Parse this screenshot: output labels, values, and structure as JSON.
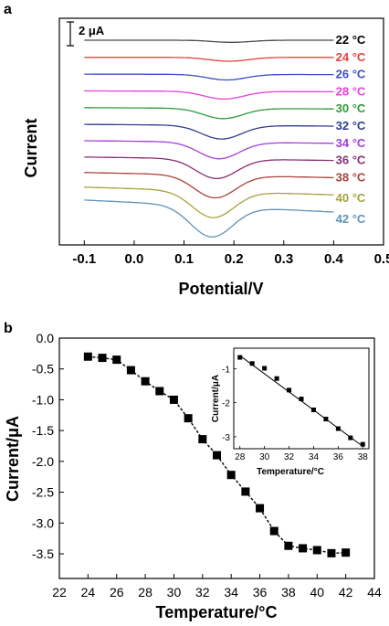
{
  "chart_data": [
    {
      "panel_label": "a",
      "type": "line",
      "xlabel": "Potential/V",
      "ylabel": "Current",
      "xlim": [
        -0.15,
        0.5
      ],
      "xticks": [
        -0.1,
        0.0,
        0.1,
        0.2,
        0.3,
        0.4,
        0.5
      ],
      "xtick_labels": [
        "-0.1",
        "0.0",
        "0.1",
        "0.2",
        "0.3",
        "0.4",
        "0.5"
      ],
      "scale_bar_label": "2 μA",
      "scale_bar_ua": 2,
      "x_range": [
        -0.1,
        0.4
      ],
      "series": [
        {
          "name": "22 °C",
          "color": "#4a4a4a",
          "peak_x": 0.195,
          "depth_ua": 0.25,
          "tilt_ua": 0.0
        },
        {
          "name": "24 °C",
          "color": "#e8403a",
          "peak_x": 0.19,
          "depth_ua": 0.45,
          "tilt_ua": 0.0
        },
        {
          "name": "26 °C",
          "color": "#3a4ec2",
          "peak_x": 0.185,
          "depth_ua": 0.65,
          "tilt_ua": 0.05
        },
        {
          "name": "28 °C",
          "color": "#e63fe0",
          "peak_x": 0.18,
          "depth_ua": 0.9,
          "tilt_ua": 0.1
        },
        {
          "name": "30 °C",
          "color": "#2f9a3c",
          "peak_x": 0.178,
          "depth_ua": 1.2,
          "tilt_ua": 0.15
        },
        {
          "name": "32 °C",
          "color": "#2e3e8c",
          "peak_x": 0.175,
          "depth_ua": 1.6,
          "tilt_ua": 0.2
        },
        {
          "name": "34 °C",
          "color": "#a43ed6",
          "peak_x": 0.17,
          "depth_ua": 1.95,
          "tilt_ua": 0.3
        },
        {
          "name": "36 °C",
          "color": "#8a2f72",
          "peak_x": 0.165,
          "depth_ua": 2.3,
          "tilt_ua": 0.4
        },
        {
          "name": "38 °C",
          "color": "#a8443e",
          "peak_x": 0.162,
          "depth_ua": 2.65,
          "tilt_ua": 0.6
        },
        {
          "name": "40 °C",
          "color": "#a6a23a",
          "peak_x": 0.158,
          "depth_ua": 3.1,
          "tilt_ua": 0.9
        },
        {
          "name": "42 °C",
          "color": "#5f93b8",
          "peak_x": 0.155,
          "depth_ua": 3.6,
          "tilt_ua": 1.4
        }
      ]
    },
    {
      "panel_label": "b",
      "type": "line",
      "xlabel": "Temperature/°C",
      "ylabel": "Current/μA",
      "xlim": [
        22,
        44
      ],
      "ylim": [
        -3.9,
        0.0
      ],
      "xticks": [
        22,
        24,
        26,
        28,
        30,
        32,
        34,
        36,
        38,
        40,
        42,
        44
      ],
      "yticks": [
        0.0,
        -0.5,
        -1.0,
        -1.5,
        -2.0,
        -2.5,
        -3.0,
        -3.5
      ],
      "ytick_labels": [
        "0.0",
        "-0.5",
        "-1.0",
        "-1.5",
        "-2.0",
        "-2.5",
        "-3.0",
        "-3.5"
      ],
      "x": [
        24,
        25,
        26,
        27,
        28,
        29,
        30,
        31,
        32,
        33,
        34,
        35,
        36,
        37,
        38,
        39,
        40,
        41,
        42
      ],
      "y": [
        -0.3,
        -0.32,
        -0.35,
        -0.52,
        -0.7,
        -0.86,
        -1.0,
        -1.3,
        -1.64,
        -1.9,
        -2.22,
        -2.49,
        -2.76,
        -3.13,
        -3.37,
        -3.41,
        -3.44,
        -3.49,
        -3.48
      ],
      "inset": {
        "xlabel": "Temperature/°C",
        "ylabel": "Current/μA",
        "xlim": [
          27.5,
          38.5
        ],
        "ylim": [
          -3.35,
          -0.4
        ],
        "xticks": [
          28,
          30,
          32,
          34,
          36,
          38
        ],
        "yticks": [
          -1,
          -2,
          -3
        ],
        "x": [
          28,
          29,
          30,
          31,
          32,
          33,
          34,
          35,
          36,
          37,
          38
        ],
        "y": [
          -0.67,
          -0.85,
          -0.99,
          -1.29,
          -1.63,
          -1.89,
          -2.21,
          -2.48,
          -2.76,
          -3.03,
          -3.22
        ],
        "fit_x": [
          28,
          38
        ],
        "fit_y": [
          -0.62,
          -3.28
        ]
      }
    }
  ]
}
